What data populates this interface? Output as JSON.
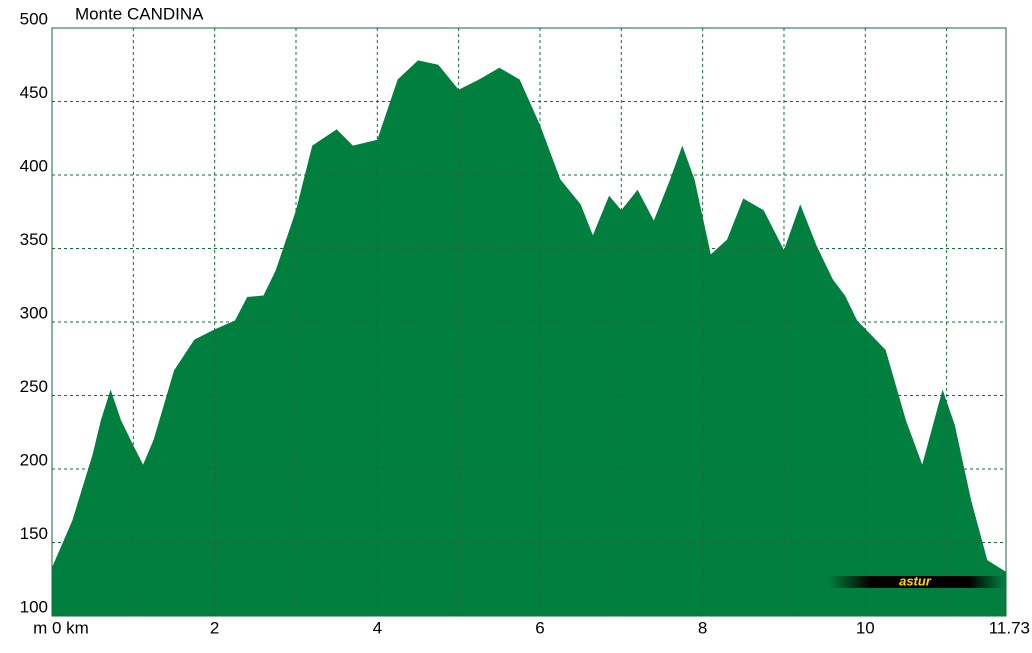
{
  "chart_data": {
    "type": "area",
    "title": "Monte CANDINA",
    "logo": "astur",
    "color": "#007f3f",
    "x": [
      0,
      0.25,
      0.5,
      0.6,
      0.72,
      0.85,
      1.0,
      1.12,
      1.25,
      1.5,
      1.75,
      2.0,
      2.25,
      2.4,
      2.6,
      2.75,
      3.0,
      3.2,
      3.5,
      3.7,
      4.0,
      4.25,
      4.5,
      4.75,
      5.0,
      5.25,
      5.5,
      5.75,
      6.0,
      6.25,
      6.5,
      6.65,
      6.85,
      7.0,
      7.2,
      7.4,
      7.6,
      7.75,
      7.9,
      8.1,
      8.3,
      8.5,
      8.75,
      9.0,
      9.2,
      9.4,
      9.6,
      9.75,
      9.9,
      10.25,
      10.5,
      10.7,
      10.95,
      11.1,
      11.3,
      11.5,
      11.73
    ],
    "values": [
      133,
      165,
      210,
      233,
      254,
      233,
      216,
      203,
      220,
      267,
      288,
      295,
      301,
      317,
      318,
      335,
      376,
      420,
      431,
      420,
      424,
      465,
      478,
      475,
      458,
      465,
      473,
      465,
      434,
      397,
      380,
      359,
      386,
      376,
      390,
      369,
      397,
      420,
      397,
      346,
      356,
      384,
      376,
      349,
      380,
      352,
      329,
      318,
      301,
      281,
      233,
      203,
      254,
      230,
      179,
      138,
      130
    ],
    "xlim": [
      0,
      11.73
    ],
    "ylim": [
      100,
      500
    ],
    "xticks": [
      {
        "value": 0,
        "label": "m 0 km"
      },
      2,
      4,
      6,
      8,
      10,
      11.73
    ],
    "xgrid": [
      1,
      2,
      3,
      4,
      5,
      6,
      7,
      8,
      9,
      10,
      11
    ],
    "yticks": [
      100,
      150,
      200,
      250,
      300,
      350,
      400,
      450,
      500
    ],
    "grid": true
  }
}
